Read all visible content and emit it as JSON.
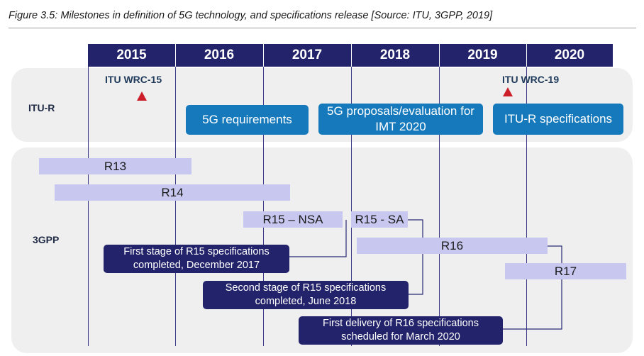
{
  "caption": "Figure 3.5: Milestones in definition of 5G technology, and specifications release [Source: ITU, 3GPP, 2019]",
  "years": [
    "2015",
    "2016",
    "2017",
    "2018",
    "2019",
    "2020"
  ],
  "rows": {
    "itu": "ITU-R",
    "gpp": "3GPP"
  },
  "milestones": {
    "wrc15": "ITU WRC-15",
    "wrc19": "ITU WRC-19"
  },
  "itu_boxes": {
    "requirements": "5G requirements",
    "proposals": "5G proposals/evaluation for IMT 2020",
    "specs": "ITU-R specifications"
  },
  "releases": {
    "r13": "R13",
    "r14": "R14",
    "r15nsa": "R15 – NSA",
    "r15sa": "R15 - SA",
    "r16": "R16",
    "r17": "R17"
  },
  "notes": {
    "first_stage": "First stage of R15 specifications completed, December 2017",
    "second_stage": "Second stage of R15 specifications completed, June 2018",
    "r16_delivery": "First delivery of R16 specifications scheduled for March 2020"
  },
  "colors": {
    "year_bar": "#23236b",
    "itu_box": "#1679bb",
    "release_bar": "#c7c7f0",
    "note_box": "#23236b",
    "milestone_marker": "#cc1f2a"
  }
}
